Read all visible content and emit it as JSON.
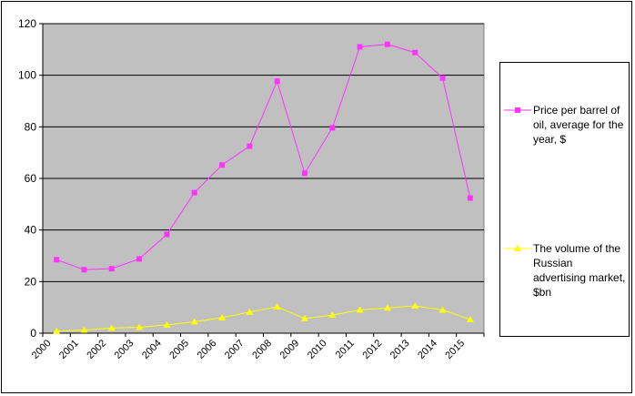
{
  "chart_data": {
    "type": "line",
    "categories": [
      "2000",
      "2001",
      "2002",
      "2003",
      "2004",
      "2005",
      "2006",
      "2007",
      "2008",
      "2009",
      "2010",
      "2011",
      "2012",
      "2013",
      "2014",
      "2015"
    ],
    "series": [
      {
        "name": "Price per barrel of oil, average for the year, $",
        "color": "#ff33ff",
        "marker": "square",
        "values": [
          28.5,
          24.6,
          25.0,
          28.8,
          38.3,
          54.5,
          65.2,
          72.5,
          97.7,
          62.0,
          79.6,
          111.0,
          112.0,
          108.8,
          98.9,
          52.4
        ]
      },
      {
        "name": "The volume of the Russian advertising market, $bn",
        "color": "#ffff00",
        "marker": "triangle",
        "values": [
          0.8,
          1.2,
          2.0,
          2.3,
          3.2,
          4.4,
          6.0,
          8.2,
          10.2,
          5.7,
          7.0,
          9.0,
          9.8,
          10.6,
          9.0,
          5.3
        ]
      }
    ],
    "ylim": [
      0,
      120
    ],
    "yticks": [
      "0",
      "20",
      "40",
      "60",
      "80",
      "100",
      "120"
    ],
    "grid": true,
    "legend_position": "right",
    "plot_background": "#c0c0c0"
  }
}
